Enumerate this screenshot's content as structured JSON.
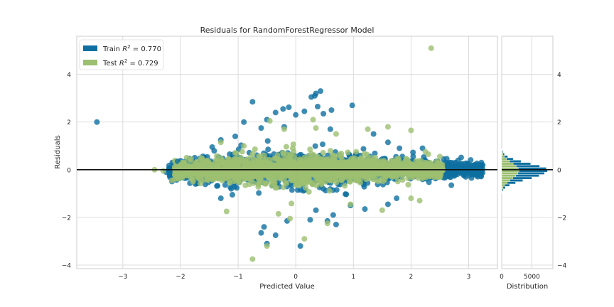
{
  "chart_data": {
    "type": "scatter",
    "title": "Residuals for RandomForestRegressor Model",
    "xlabel": "Predicted Value",
    "ylabel": "Residuals",
    "xlim": [
      -3.8,
      3.5
    ],
    "ylim": [
      -4.15,
      5.6
    ],
    "x_ticks": [
      "−3",
      "−2",
      "−1",
      "0",
      "1",
      "2",
      "3"
    ],
    "y_ticks": [
      "−4",
      "−2",
      "0",
      "2",
      "4"
    ],
    "grid": true,
    "legend_position": "top-left",
    "legend": [
      {
        "label_prefix": "Train ",
        "label_math": "R",
        "label_sup": "2",
        "label_suffix": " = 0.770",
        "color": "#0e6fa0"
      },
      {
        "label_prefix": "Test ",
        "label_math": "R",
        "label_sup": "2",
        "label_suffix": " = 0.729",
        "color": "#9cbf70"
      }
    ],
    "zero_line": 0,
    "series": [
      {
        "role": "train",
        "color": "#0e6fa0",
        "points": [
          [
            -3.45,
            2.0
          ],
          [
            0.43,
            3.3
          ],
          [
            0.35,
            3.2
          ],
          [
            0.33,
            3.1
          ],
          [
            0.27,
            3.05
          ],
          [
            0.98,
            2.7
          ],
          [
            -0.75,
            2.85
          ],
          [
            -0.12,
            2.62
          ],
          [
            -0.22,
            2.55
          ],
          [
            -0.35,
            2.4
          ],
          [
            0.38,
            2.65
          ],
          [
            0.62,
            2.5
          ],
          [
            0.48,
            2.35
          ],
          [
            -0.5,
            2.1
          ],
          [
            0.0,
            2.3
          ],
          [
            -0.6,
            1.75
          ],
          [
            -0.9,
            2.0
          ],
          [
            0.15,
            2.45
          ],
          [
            -0.55,
            -2.4
          ],
          [
            -0.6,
            -2.65
          ],
          [
            -0.35,
            -2.75
          ],
          [
            -0.5,
            -3.1
          ],
          [
            0.08,
            -3.2
          ],
          [
            -0.15,
            -2.15
          ],
          [
            0.65,
            -1.9
          ],
          [
            0.7,
            -2.3
          ],
          [
            0.25,
            -2.1
          ],
          [
            0.55,
            -2.15
          ],
          [
            0.95,
            -1.5
          ],
          [
            1.2,
            -1.65
          ],
          [
            2.95,
            -0.3
          ],
          [
            3.1,
            -0.2
          ],
          [
            3.2,
            -0.15
          ],
          [
            3.05,
            -0.35
          ],
          [
            2.85,
            -0.05
          ],
          [
            2.7,
            -0.65
          ],
          [
            2.8,
            0.15
          ],
          [
            -2.05,
            0.35
          ],
          [
            -2.25,
            -0.1
          ],
          [
            -2.2,
            0.05
          ],
          [
            1.6,
            -1.45
          ],
          [
            1.75,
            -1.2
          ],
          [
            -1.1,
            -1.05
          ],
          [
            -1.3,
            -1.2
          ],
          [
            -1.05,
            1.4
          ],
          [
            -1.3,
            1.25
          ],
          [
            -1.45,
            0.95
          ],
          [
            1.35,
            1.5
          ],
          [
            1.6,
            1.15
          ],
          [
            1.8,
            0.9
          ],
          [
            2.2,
            0.9
          ],
          [
            -0.2,
            1.8
          ],
          [
            0.6,
            1.7
          ],
          [
            0.35,
            -1.7
          ]
        ]
      },
      {
        "role": "test",
        "color": "#9cbf70",
        "points": [
          [
            2.35,
            5.1
          ],
          [
            0.3,
            2.1
          ],
          [
            -0.45,
            2.05
          ],
          [
            -0.75,
            -3.75
          ],
          [
            -0.5,
            -3.2
          ],
          [
            0.15,
            -2.9
          ],
          [
            0.55,
            -2.25
          ],
          [
            -0.1,
            -2.05
          ],
          [
            1.25,
            1.7
          ],
          [
            1.6,
            1.8
          ],
          [
            2.0,
            1.65
          ],
          [
            2.3,
            0.65
          ],
          [
            2.5,
            0.55
          ],
          [
            2.45,
            0.35
          ],
          [
            2.15,
            -1.3
          ],
          [
            2.0,
            -1.2
          ],
          [
            -2.15,
            -0.45
          ],
          [
            -2.3,
            -0.05
          ],
          [
            -2.45,
            0.0
          ],
          [
            -1.2,
            -1.75
          ],
          [
            -1.3,
            1.15
          ],
          [
            -0.2,
            1.7
          ],
          [
            0.7,
            1.5
          ],
          [
            0.95,
            -1.45
          ],
          [
            1.5,
            -1.7
          ],
          [
            -0.3,
            -1.85
          ],
          [
            0.35,
            1.75
          ],
          [
            -0.9,
            1.0
          ],
          [
            2.25,
            0.75
          ],
          [
            -2.0,
            0.2
          ]
        ]
      }
    ],
    "histogram": {
      "xlabel": "Distribution",
      "x_ticks": [
        "0",
        "5000"
      ],
      "xlim": [
        0,
        8500
      ],
      "bin_width": 0.1,
      "train": {
        "color": "#0e6fa0",
        "bins": [
          [
            -0.95,
            60
          ],
          [
            -0.85,
            250
          ],
          [
            -0.75,
            600
          ],
          [
            -0.65,
            1300
          ],
          [
            -0.55,
            2300
          ],
          [
            -0.45,
            3500
          ],
          [
            -0.35,
            5000
          ],
          [
            -0.25,
            6200
          ],
          [
            -0.15,
            7100
          ],
          [
            -0.05,
            7600
          ],
          [
            0.05,
            7400
          ],
          [
            0.15,
            6300
          ],
          [
            0.25,
            4800
          ],
          [
            0.35,
            3200
          ],
          [
            0.45,
            1900
          ],
          [
            0.55,
            1000
          ],
          [
            0.65,
            450
          ],
          [
            0.75,
            200
          ],
          [
            0.85,
            70
          ]
        ]
      },
      "test": {
        "color": "#9cbf70",
        "bins": [
          [
            -0.95,
            20
          ],
          [
            -0.85,
            90
          ],
          [
            -0.75,
            220
          ],
          [
            -0.65,
            500
          ],
          [
            -0.55,
            900
          ],
          [
            -0.45,
            1350
          ],
          [
            -0.35,
            1850
          ],
          [
            -0.25,
            2350
          ],
          [
            -0.15,
            2700
          ],
          [
            -0.05,
            2850
          ],
          [
            0.05,
            2750
          ],
          [
            0.15,
            2400
          ],
          [
            0.25,
            1900
          ],
          [
            0.35,
            1300
          ],
          [
            0.45,
            800
          ],
          [
            0.55,
            420
          ],
          [
            0.65,
            200
          ],
          [
            0.75,
            80
          ],
          [
            0.85,
            25
          ]
        ]
      }
    }
  }
}
